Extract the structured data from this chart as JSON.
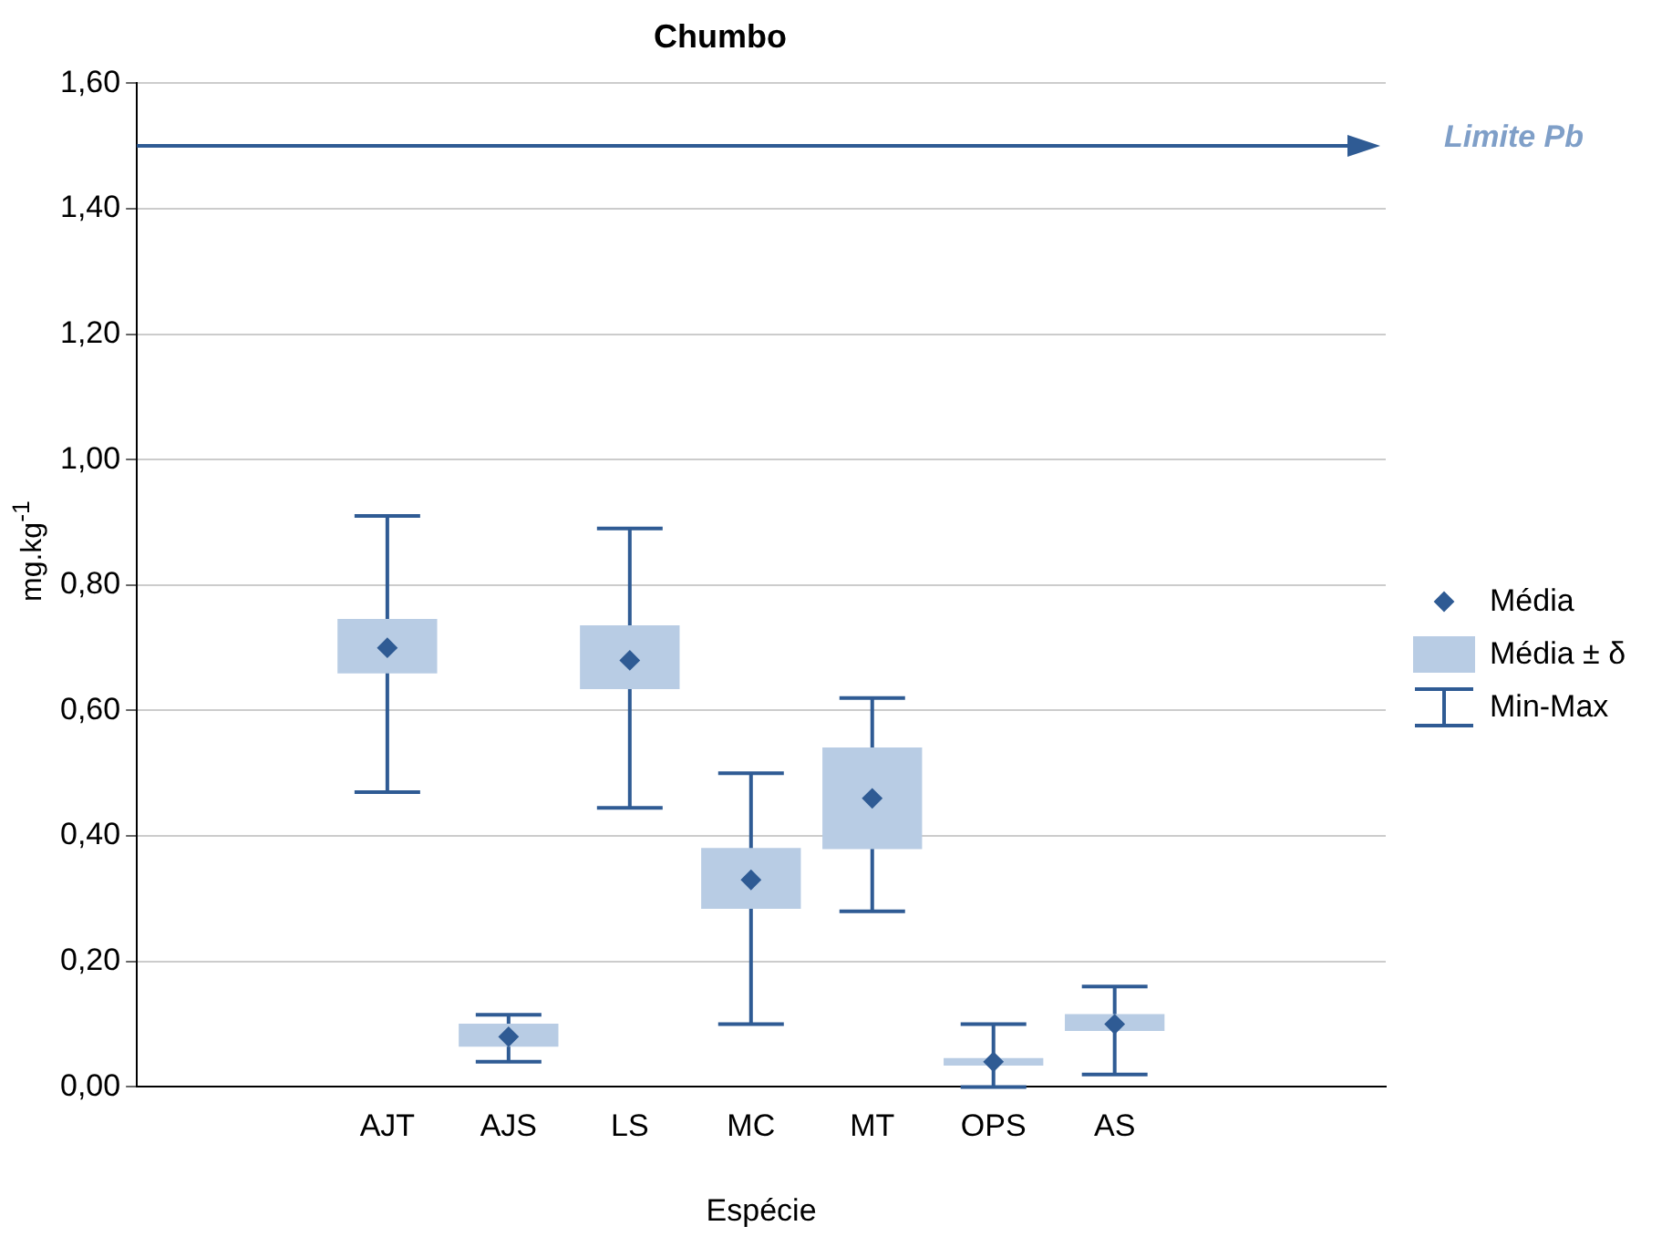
{
  "chart_data": {
    "type": "box",
    "title": "Chumbo",
    "xlabel": "Espécie",
    "ylabel": "mg.kg$^{-1}$",
    "categories": [
      "AJT",
      "AJS",
      "LS",
      "MC",
      "MT",
      "OPS",
      "AS"
    ],
    "series": [
      {
        "type": "bar",
        "name": "Média ± δ",
        "color": "#b8cce4",
        "base": [
          0.66,
          0.065,
          0.635,
          0.285,
          0.38,
          0.035,
          0.09
        ],
        "values": [
          0.085,
          0.035,
          0.1,
          0.095,
          0.16,
          0.01,
          0.025
        ]
      },
      {
        "type": "scatter",
        "name": "Média",
        "color": "#2f5b94",
        "marker": "diamond",
        "values": [
          0.7,
          0.08,
          0.68,
          0.33,
          0.46,
          0.04,
          0.1
        ],
        "errors": [
          [
            0.47,
            0.91
          ],
          [
            0.04,
            0.115
          ],
          [
            0.445,
            0.89
          ],
          [
            0.1,
            0.5
          ],
          [
            0.28,
            0.62
          ],
          [
            0.0,
            0.1
          ],
          [
            0.02,
            0.16
          ]
        ]
      }
    ],
    "annotations": [
      "Min-Max"
    ],
    "ylim": [
      0,
      1.6
    ],
    "yticks": [
      {
        "value": 0,
        "label": "0,00"
      },
      {
        "value": 0.2,
        "label": "0,20"
      },
      {
        "value": 0.4,
        "label": "0,40"
      },
      {
        "value": 0.6,
        "label": "0,60"
      },
      {
        "value": 0.8,
        "label": "0,80"
      },
      {
        "value": 1.0,
        "label": "1,00"
      },
      {
        "value": 1.2,
        "label": "1,20"
      },
      {
        "value": 1.4,
        "label": "1,40"
      },
      {
        "value": 1.6,
        "label": "1,60"
      }
    ],
    "grid": "y",
    "legend": "right",
    "ref_lines": [
      {
        "axis": "y",
        "value": 1.5,
        "label": "Limite Pb",
        "color": "#2f5b94"
      }
    ]
  }
}
